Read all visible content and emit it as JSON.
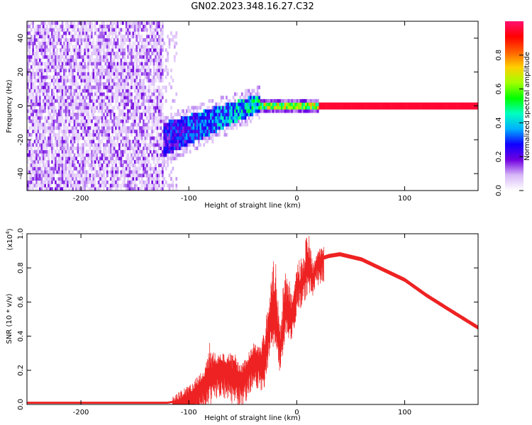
{
  "figure_title": "GN02.2023.348.16.27.C32",
  "chart_data": [
    {
      "type": "heatmap",
      "title": "GN02.2023.348.16.27.C32",
      "xlabel": "Height of straight line (km)",
      "ylabel": "Frequency (Hz)",
      "xlim": [
        -250,
        168
      ],
      "ylim": [
        -50,
        50
      ],
      "x_ticks": [
        -200,
        -100,
        0,
        100
      ],
      "y_ticks": [
        -40,
        -20,
        0,
        20,
        40
      ],
      "colorbar": {
        "label": "Normalized spectral amplitude",
        "range": [
          0,
          1
        ],
        "ticks": [
          0.0,
          0.2,
          0.4,
          0.6,
          0.8
        ],
        "colormap": [
          "#ffffff",
          "#d8b8f8",
          "#7000e0",
          "#1000ff",
          "#00b0ff",
          "#00ffc0",
          "#00ff00",
          "#a0ff00",
          "#ffd000",
          "#ff6000",
          "#ff0000",
          "#ff1070"
        ]
      },
      "regions": [
        {
          "name": "noise",
          "x_range": [
            -250,
            -125
          ],
          "freq_range": [
            -50,
            50
          ],
          "amplitude": 0.1
        },
        {
          "name": "transition",
          "x_range": [
            -125,
            -35
          ],
          "freq_center": [
            -20,
            2
          ],
          "freq_halfwidth": [
            10,
            5
          ],
          "amplitude": [
            0.25,
            0.45
          ]
        },
        {
          "name": "narrowband",
          "x_range": [
            -35,
            20
          ],
          "freq_center": 0,
          "freq_halfwidth": 2,
          "amplitude": 0.6
        },
        {
          "name": "tone",
          "x_range": [
            20,
            168
          ],
          "freq_center": 0,
          "freq_halfwidth": 1.5,
          "amplitude": 0.95
        }
      ]
    },
    {
      "type": "line",
      "xlabel": "Height of straight line (km)",
      "ylabel": "SNR (10 * v/v)",
      "y_multiplier": "(x10",
      "y_multiplier_exp": "4",
      "xlim": [
        -250,
        168
      ],
      "ylim": [
        0,
        1.0
      ],
      "x_ticks": [
        -200,
        -100,
        0,
        100
      ],
      "y_ticks": [
        0.0,
        0.2,
        0.4,
        0.6,
        0.8,
        1.0
      ],
      "color": "#ee2222",
      "series": [
        {
          "x": [
            -250,
            -200,
            -150,
            -120,
            -110,
            -100,
            -90,
            -80,
            -70,
            -60,
            -50,
            -40,
            -30,
            -25,
            -20,
            -15,
            -10,
            -5,
            0,
            5,
            10,
            15,
            20,
            30,
            40,
            60,
            80,
            100,
            120,
            140,
            168
          ],
          "y": [
            0.01,
            0.01,
            0.01,
            0.01,
            0.02,
            0.05,
            0.12,
            0.2,
            0.25,
            0.2,
            0.18,
            0.3,
            0.25,
            0.5,
            0.55,
            0.35,
            0.6,
            0.55,
            0.72,
            0.7,
            0.8,
            0.75,
            0.85,
            0.87,
            0.88,
            0.85,
            0.79,
            0.73,
            0.64,
            0.56,
            0.45
          ],
          "spike_peaks": [
            {
              "x": -80,
              "y": 0.33
            },
            {
              "x": -60,
              "y": 0.3
            },
            {
              "x": -30,
              "y": 0.4
            },
            {
              "x": -25,
              "y": 0.62
            },
            {
              "x": -21,
              "y": 0.87
            },
            {
              "x": -10,
              "y": 0.78
            },
            {
              "x": 4,
              "y": 0.85
            },
            {
              "x": 10,
              "y": 1.0
            },
            {
              "x": 15,
              "y": 0.8
            },
            {
              "x": 30,
              "y": 0.93
            }
          ]
        }
      ]
    }
  ]
}
